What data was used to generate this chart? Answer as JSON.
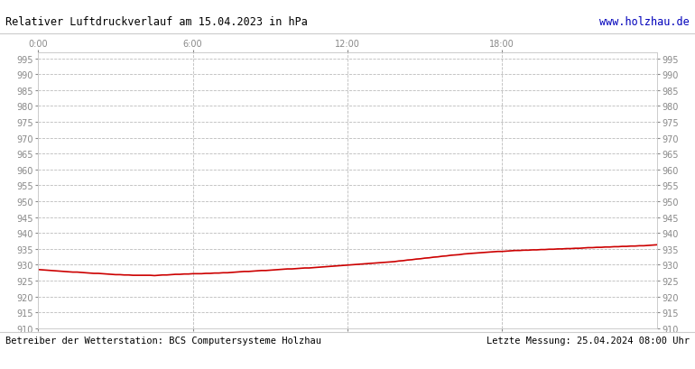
{
  "title": "Relativer Luftdruckverlauf am 15.04.2023 in hPa",
  "title_color": "#000000",
  "website": "www.holzhau.de",
  "website_color": "#0000bb",
  "footer_left": "Betreiber der Wetterstation: BCS Computersysteme Holzhau",
  "footer_right": "Letzte Messung: 25.04.2024 08:00 Uhr",
  "footer_color": "#000000",
  "background_color": "#ffffff",
  "plot_bg_color": "#ffffff",
  "grid_color": "#bbbbbb",
  "line_color": "#cc0000",
  "line_width": 1.2,
  "ylim": [
    910,
    997
  ],
  "ytick_step": 5,
  "xtick_labels": [
    "0:00",
    "6:00",
    "12:00",
    "18:00"
  ],
  "xtick_positions": [
    0.0,
    0.25,
    0.5,
    0.75
  ],
  "pressure_x": [
    0.0,
    0.007,
    0.014,
    0.021,
    0.028,
    0.035,
    0.042,
    0.049,
    0.056,
    0.063,
    0.069,
    0.076,
    0.083,
    0.09,
    0.097,
    0.104,
    0.111,
    0.118,
    0.125,
    0.132,
    0.139,
    0.146,
    0.153,
    0.16,
    0.167,
    0.174,
    0.181,
    0.188,
    0.194,
    0.201,
    0.208,
    0.215,
    0.222,
    0.229,
    0.236,
    0.243,
    0.25,
    0.257,
    0.264,
    0.271,
    0.278,
    0.285,
    0.292,
    0.299,
    0.306,
    0.313,
    0.319,
    0.326,
    0.333,
    0.34,
    0.347,
    0.354,
    0.361,
    0.368,
    0.375,
    0.382,
    0.389,
    0.396,
    0.403,
    0.41,
    0.417,
    0.424,
    0.431,
    0.438,
    0.444,
    0.451,
    0.458,
    0.465,
    0.472,
    0.479,
    0.486,
    0.493,
    0.5,
    0.507,
    0.514,
    0.521,
    0.528,
    0.535,
    0.542,
    0.549,
    0.556,
    0.563,
    0.569,
    0.576,
    0.583,
    0.59,
    0.597,
    0.604,
    0.611,
    0.618,
    0.625,
    0.632,
    0.639,
    0.646,
    0.653,
    0.66,
    0.667,
    0.674,
    0.681,
    0.688,
    0.694,
    0.701,
    0.708,
    0.715,
    0.722,
    0.729,
    0.736,
    0.743,
    0.75,
    0.757,
    0.764,
    0.771,
    0.778,
    0.785,
    0.792,
    0.799,
    0.806,
    0.813,
    0.819,
    0.826,
    0.833,
    0.84,
    0.847,
    0.854,
    0.861,
    0.868,
    0.875,
    0.882,
    0.889,
    0.896,
    0.903,
    0.91,
    0.917,
    0.924,
    0.931,
    0.938,
    0.944,
    0.951,
    0.958,
    0.965,
    0.972,
    0.979,
    0.986,
    0.993,
    1.0
  ],
  "pressure_y": [
    928.5,
    928.4,
    928.3,
    928.2,
    928.1,
    928.0,
    927.9,
    927.8,
    927.7,
    927.7,
    927.6,
    927.5,
    927.4,
    927.3,
    927.3,
    927.2,
    927.1,
    927.0,
    926.9,
    926.9,
    926.8,
    926.8,
    926.7,
    926.7,
    926.7,
    926.7,
    926.7,
    926.6,
    926.7,
    926.8,
    926.8,
    926.9,
    927.0,
    927.0,
    927.1,
    927.1,
    927.2,
    927.2,
    927.2,
    927.3,
    927.3,
    927.4,
    927.4,
    927.5,
    927.5,
    927.6,
    927.7,
    927.8,
    927.9,
    927.9,
    928.0,
    928.1,
    928.2,
    928.2,
    928.3,
    928.4,
    928.5,
    928.6,
    928.7,
    928.7,
    928.8,
    928.9,
    929.0,
    929.0,
    929.1,
    929.2,
    929.3,
    929.4,
    929.5,
    929.6,
    929.7,
    929.8,
    929.9,
    930.0,
    930.1,
    930.2,
    930.3,
    930.4,
    930.5,
    930.6,
    930.7,
    930.8,
    930.9,
    931.0,
    931.2,
    931.3,
    931.5,
    931.6,
    931.8,
    931.9,
    932.1,
    932.2,
    932.4,
    932.5,
    932.7,
    932.8,
    933.0,
    933.1,
    933.2,
    933.4,
    933.5,
    933.6,
    933.7,
    933.8,
    933.9,
    934.0,
    934.1,
    934.2,
    934.2,
    934.3,
    934.4,
    934.5,
    934.5,
    934.6,
    934.6,
    934.7,
    934.7,
    934.8,
    934.8,
    934.9,
    934.9,
    935.0,
    935.0,
    935.1,
    935.1,
    935.2,
    935.2,
    935.3,
    935.4,
    935.4,
    935.5,
    935.5,
    935.6,
    935.6,
    935.7,
    935.7,
    935.8,
    935.8,
    935.9,
    935.9,
    936.0,
    936.0,
    936.1,
    936.2,
    936.3
  ]
}
